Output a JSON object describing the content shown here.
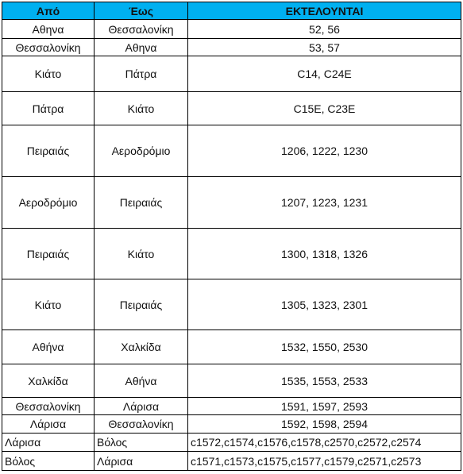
{
  "table": {
    "header": [
      "Από",
      "Έως",
      "ΕΚΤΕΛΟΥΝΤΑΙ"
    ],
    "rows": [
      [
        "Αθηνα",
        "Θεσσαλονίκη",
        "52, 56"
      ],
      [
        "Θεσσαλονίκη",
        "Αθηνα",
        "53, 57"
      ],
      [
        "Κιάτο",
        "Πάτρα",
        "C14, C24E"
      ],
      [
        "Πάτρα",
        "Κιάτο",
        "C15E, C23E"
      ],
      [
        "Πειραιάς",
        "Αεροδρόμιο",
        "1206, 1222, 1230"
      ],
      [
        "Αεροδρόμιο",
        "Πειραιάς",
        "1207, 1223, 1231"
      ],
      [
        "Πειραιάς",
        "Κιάτο",
        "1300, 1318, 1326"
      ],
      [
        "Κιάτο",
        "Πειραιάς",
        "1305, 1323, 2301"
      ],
      [
        "Αθήνα",
        "Χαλκίδα",
        "1532, 1550, 2530"
      ],
      [
        "Χαλκίδα",
        "Αθήνα",
        "1535, 1553, 2533"
      ],
      [
        "Θεσσαλονίκη",
        "Λάρισα",
        "1591, 1597, 2593"
      ],
      [
        "Λάρισα",
        "Θεσσαλονίκη",
        "1592, 1598, 2594"
      ],
      [
        "Λάρισα",
        "Βόλος",
        "c1572,c1574,c1576,c1578,c2570,c2572,c2574"
      ],
      [
        "Βόλος",
        "Λάρισα",
        "c1571,c1573,c1575,c1577,c1579,c2571,c2573"
      ]
    ]
  }
}
